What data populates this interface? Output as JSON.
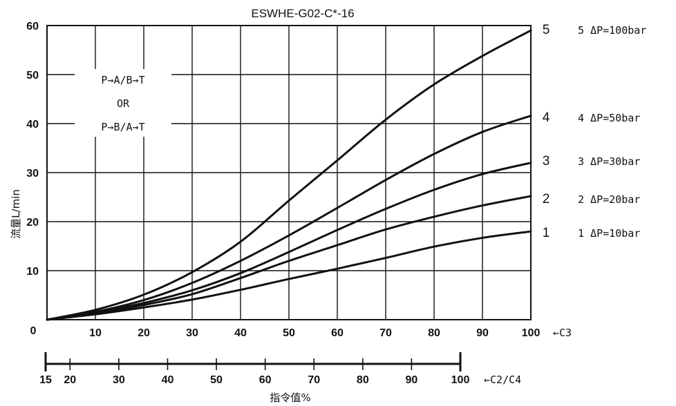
{
  "chart_data": {
    "type": "line",
    "title": "ESWHE-G02-C*-16",
    "ylabel": "流量L/min",
    "xlabel": "指令值%",
    "x_range": [
      0,
      100
    ],
    "ylim": [
      0,
      60
    ],
    "y_ticks": [
      "10",
      "20",
      "30",
      "40",
      "50",
      "60"
    ],
    "x_ticks": [
      "0",
      "10",
      "20",
      "30",
      "40",
      "50",
      "60",
      "70",
      "80",
      "90",
      "100"
    ],
    "x_axis_tag": "←C3",
    "secondary_axis": {
      "ticks": [
        "15",
        "20",
        "30",
        "40",
        "50",
        "60",
        "70",
        "80",
        "90",
        "100"
      ],
      "values": [
        15,
        20,
        30,
        40,
        50,
        60,
        70,
        80,
        90,
        100
      ],
      "tag": "←C2/C4"
    },
    "grid": true,
    "flow_box": [
      "P→A/B→T",
      "OR",
      "P→B/A→T"
    ],
    "series": [
      {
        "name": "1",
        "label": "1 ΔP=10bar",
        "x": [
          0,
          10,
          20,
          30,
          40,
          50,
          60,
          70,
          80,
          90,
          100
        ],
        "values": [
          0,
          1.1,
          2.5,
          4.1,
          6.1,
          8.3,
          10.4,
          12.6,
          14.9,
          16.7,
          18.0
        ]
      },
      {
        "name": "2",
        "label": "2 ΔP=20bar",
        "x": [
          0,
          10,
          20,
          30,
          40,
          50,
          60,
          70,
          80,
          90,
          100
        ],
        "values": [
          0,
          1.3,
          3.0,
          5.2,
          8.5,
          12.0,
          15.2,
          18.4,
          21.0,
          23.3,
          25.2
        ]
      },
      {
        "name": "3",
        "label": "3 ΔP=30bar",
        "x": [
          0,
          10,
          20,
          30,
          40,
          50,
          60,
          70,
          80,
          90,
          100
        ],
        "values": [
          0,
          1.4,
          3.4,
          6.0,
          9.5,
          13.8,
          18.3,
          22.6,
          26.5,
          29.7,
          32.0
        ]
      },
      {
        "name": "4",
        "label": "4 ΔP=50bar",
        "x": [
          0,
          10,
          20,
          30,
          40,
          50,
          60,
          70,
          80,
          90,
          100
        ],
        "values": [
          0,
          1.6,
          4.0,
          7.5,
          12.0,
          17.2,
          22.8,
          28.5,
          33.8,
          38.3,
          41.6
        ]
      },
      {
        "name": "5",
        "label": "5 ΔP=100bar",
        "x": [
          0,
          10,
          20,
          30,
          40,
          50,
          60,
          70,
          80,
          90,
          100
        ],
        "values": [
          0,
          2.0,
          5.1,
          9.7,
          15.9,
          24.3,
          32.5,
          40.8,
          48.0,
          53.8,
          59.0
        ]
      }
    ]
  }
}
